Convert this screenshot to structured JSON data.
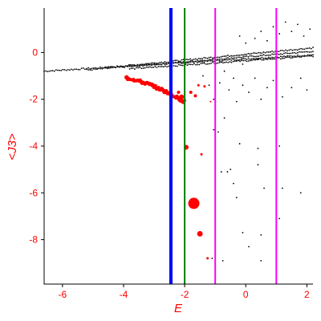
{
  "chart_data": {
    "type": "scatter",
    "xlabel": "E",
    "ylabel": "<J3>",
    "xlim": [
      -6.6,
      2.2
    ],
    "ylim": [
      -9.9,
      1.9
    ],
    "x_ticks": [
      -6,
      -4,
      -2,
      0,
      2
    ],
    "y_ticks": [
      0,
      -2,
      -4,
      -6,
      -8
    ],
    "grid": false,
    "colors": {
      "axis": "#000000",
      "ticks": "#ff0000",
      "black_points": "#000000",
      "red_points": "#ff0000"
    },
    "vertical_lines": [
      {
        "x": -2.45,
        "color": "#0000ff",
        "width": "thick"
      },
      {
        "x": -2.0,
        "color": "#008000",
        "width": "medium"
      },
      {
        "x": -1.0,
        "color": "#ff00ff",
        "width": "medium"
      },
      {
        "x": 1.0,
        "color": "#ff00ff",
        "width": "medium"
      }
    ],
    "series": [
      {
        "color": "#000000",
        "bands": [
          {
            "from": [
              -6.6,
              -0.8
            ],
            "to": [
              2.2,
              -0.1
            ]
          },
          {
            "from": [
              -5.2,
              -0.75
            ],
            "to": [
              2.2,
              0.05
            ]
          },
          {
            "from": [
              -4.6,
              -0.65
            ],
            "to": [
              2.2,
              0.2
            ]
          },
          {
            "from": [
              -3.8,
              -0.7
            ],
            "to": [
              2.2,
              -0.15
            ]
          }
        ],
        "points": [
          [
            -1.4,
            -1.0
          ],
          [
            -1.2,
            -1.4
          ],
          [
            -1.05,
            -2.0
          ],
          [
            -0.85,
            -1.3
          ],
          [
            -0.7,
            -0.8
          ],
          [
            -0.55,
            -1.6
          ],
          [
            -0.4,
            -1.1
          ],
          [
            -0.3,
            -2.1
          ],
          [
            -0.1,
            -1.4
          ],
          [
            0.1,
            -1.7
          ],
          [
            0.3,
            -1.1
          ],
          [
            0.5,
            -2.0
          ],
          [
            0.7,
            -1.5
          ],
          [
            0.9,
            -1.2
          ],
          [
            1.2,
            -1.9
          ],
          [
            1.5,
            -1.5
          ],
          [
            1.8,
            -1.1
          ],
          [
            2.0,
            -1.6
          ],
          [
            0.0,
            0.4
          ],
          [
            0.3,
            0.6
          ],
          [
            0.5,
            0.9
          ],
          [
            0.7,
            0.5
          ],
          [
            0.9,
            1.1
          ],
          [
            1.1,
            0.8
          ],
          [
            1.3,
            1.3
          ],
          [
            1.5,
            0.9
          ],
          [
            1.7,
            1.2
          ],
          [
            1.9,
            0.7
          ],
          [
            2.1,
            1.0
          ],
          [
            -0.2,
            0.7
          ],
          [
            -0.1,
            -0.5
          ],
          [
            0.4,
            -0.3
          ],
          [
            -0.7,
            -2.8
          ],
          [
            -0.9,
            -3.4
          ],
          [
            -0.5,
            -5.0
          ],
          [
            -0.8,
            -5.1
          ],
          [
            -0.4,
            -5.6
          ],
          [
            -0.3,
            -6.2
          ],
          [
            0.4,
            -4.8
          ],
          [
            0.6,
            -5.8
          ],
          [
            1.2,
            -5.8
          ],
          [
            1.8,
            -6.0
          ],
          [
            1.1,
            -7.1
          ],
          [
            0.5,
            -7.8
          ],
          [
            0.1,
            -8.3
          ],
          [
            -0.1,
            -7.7
          ],
          [
            0.5,
            -8.9
          ],
          [
            -0.75,
            -8.9
          ],
          [
            -1.1,
            -8.8
          ],
          [
            -1.0,
            -6.5
          ],
          [
            -1.05,
            -3.3
          ],
          [
            0.4,
            -4.1
          ],
          [
            1.1,
            -4.0
          ],
          [
            -0.2,
            -3.9
          ],
          [
            -0.6,
            -5.1
          ]
        ]
      },
      {
        "color": "#ff0000",
        "band": {
          "from": [
            -3.9,
            -1.1
          ],
          "to": [
            -2.0,
            -2.1
          ]
        },
        "points": [
          [
            -2.1,
            -1.9
          ],
          [
            -2.05,
            -2.1
          ],
          [
            -2.2,
            -1.7
          ],
          [
            -1.8,
            -1.7
          ],
          [
            -1.65,
            -1.85
          ],
          [
            -1.55,
            -1.4
          ],
          [
            -1.35,
            -1.45
          ],
          [
            -1.15,
            -2.1
          ],
          [
            -1.95,
            -4.05
          ],
          [
            -1.45,
            -4.35
          ],
          [
            -1.7,
            -6.45
          ],
          [
            -1.5,
            -7.75
          ],
          [
            -1.25,
            -8.8
          ]
        ],
        "sizes": [
          3,
          3,
          2,
          2,
          2,
          1.5,
          1.5,
          1,
          3,
          1.5,
          7,
          3.5,
          1.5
        ]
      }
    ]
  }
}
